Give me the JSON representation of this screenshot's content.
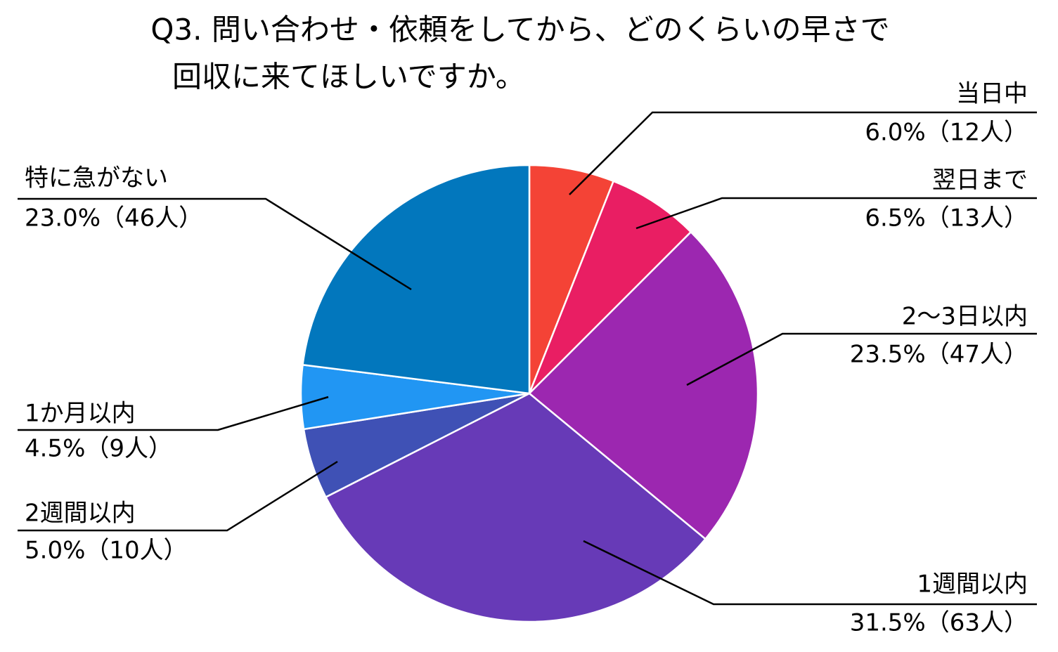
{
  "chart_data": {
    "type": "pie",
    "title": [
      "Q3. 問い合わせ・依頼をしてから、どのくらいの早さで",
      "回収に来てほしいですか。"
    ],
    "categories": [
      "当日中",
      "翌日まで",
      "2～3日以内",
      "1週間以内",
      "2週間以内",
      "1か月以内",
      "特に急がない"
    ],
    "values": [
      6.0,
      6.5,
      23.5,
      31.5,
      5.0,
      4.5,
      23.0
    ],
    "value_labels": [
      "6.0%（12人）",
      "6.5%（13人）",
      "23.5%（47人）",
      "31.5%（63人）",
      "5.0%（10人）",
      "4.5%（9人）",
      "23.0%（46人）"
    ],
    "colors": [
      "#f44336",
      "#e91e63",
      "#9c27b0",
      "#673ab7",
      "#3f51b5",
      "#2196f3",
      "#0277bd"
    ]
  }
}
